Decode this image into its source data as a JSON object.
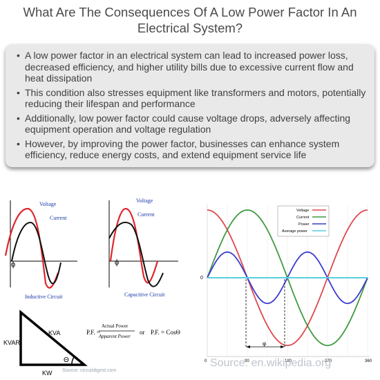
{
  "title": "What Are The Consequences Of A Low Power Factor In An Electrical System?",
  "bullets": [
    "A low power factor in an electrical system can lead to increased power loss, decreased efficiency, and higher utility bills due to excessive current flow and heat dissipation",
    "This condition also stresses equipment like transformers and motors, potentially reducing their lifespan and performance",
    "Additionally, low power factor could cause voltage drops, adversely affecting equipment operation and voltage regulation",
    "However, by improving the power factor, businesses can enhance system efficiency, reduce energy costs, and extend equipment service life"
  ],
  "inductive": {
    "voltage": "Voltage",
    "current": "Current",
    "phi": "ϕ",
    "caption": "Inductive Circuit"
  },
  "capacitive": {
    "voltage": "Voltage",
    "current": "Current",
    "phi": "ϕ",
    "caption": "Capacitive Circuit"
  },
  "triangle": {
    "hyp": "KVA",
    "vert": "KVAR",
    "base": "KW",
    "angle": "Θ",
    "source": "Source: circuitdigest.com"
  },
  "formula": {
    "lhs1": "P.F. =",
    "num": "Actual Power",
    "den": "Apparent Power",
    "or": "or",
    "rhs": "P.F. = CosΘ"
  },
  "wave_chart": {
    "legend": [
      "Voltage",
      "Current",
      "Power",
      "Average power"
    ],
    "zero_label": "0",
    "x_ticks": [
      "0",
      "90",
      "180",
      "270",
      "360"
    ],
    "phi_label": "φ",
    "colors": {
      "voltage": "#e0474c",
      "current": "#3f9a3f",
      "power": "#3b3bd0",
      "avg": "#55cfe0"
    }
  },
  "source": "Source: en.wikipedia.org"
}
